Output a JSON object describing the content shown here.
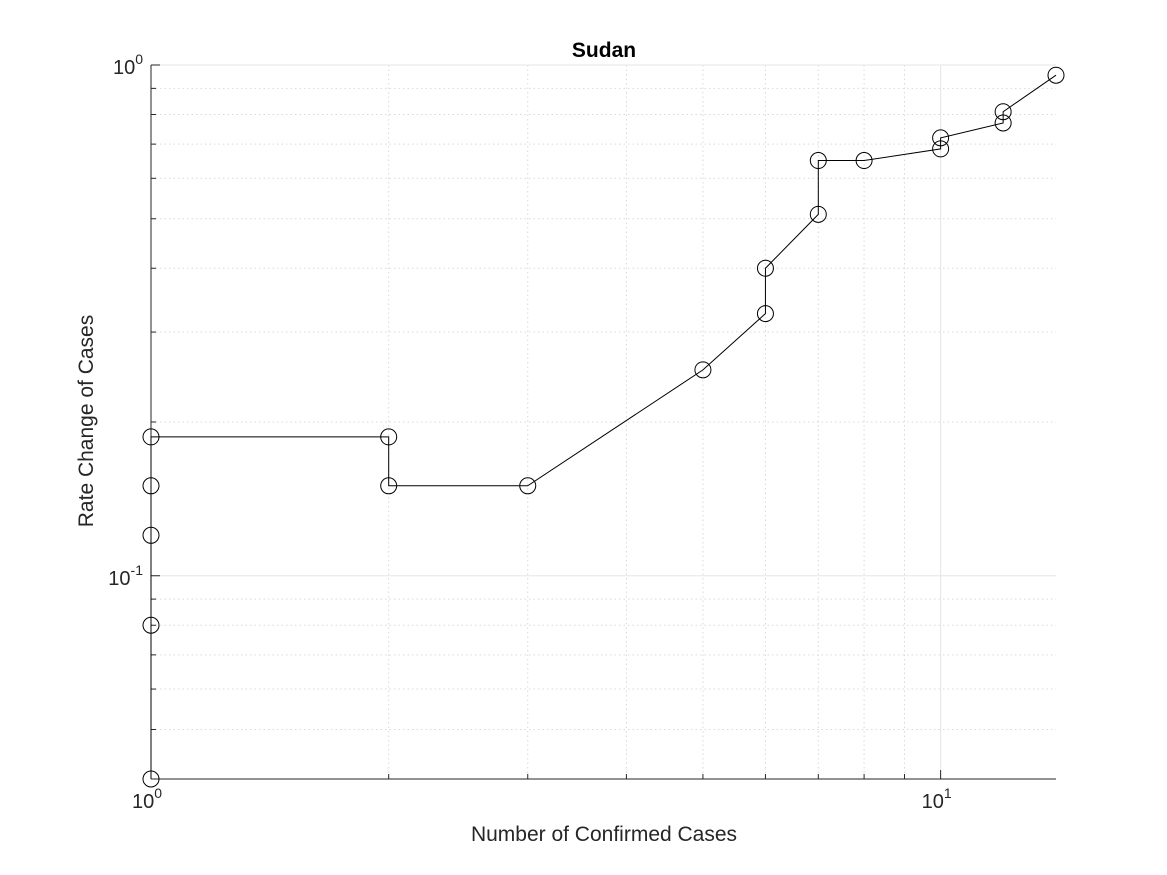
{
  "chart_data": {
    "type": "line",
    "title": "Sudan",
    "xlabel": "Number of Confirmed Cases",
    "ylabel": "Rate Change of Cases",
    "xscale": "log",
    "yscale": "log",
    "xlim": [
      1,
      14
    ],
    "ylim": [
      0.04,
      1
    ],
    "grid": true,
    "minor_grid": true,
    "legend": "none",
    "marker": "circle",
    "colors": {
      "line": "#000000",
      "grid_major": "#e6e6e6",
      "grid_minor": "#d9d9d9",
      "axis": "#262626",
      "background": "#ffffff"
    },
    "x_ticks": [
      {
        "base": "10",
        "exp": "0",
        "value": 1
      },
      {
        "base": "10",
        "exp": "1",
        "value": 10
      }
    ],
    "y_ticks": [
      {
        "base": "10",
        "exp": "-1",
        "value": 0.1
      },
      {
        "base": "10",
        "exp": "0",
        "value": 1
      }
    ],
    "series": [
      {
        "x": [
          1,
          1,
          1,
          1,
          1,
          2,
          2,
          3,
          5,
          6,
          6,
          7,
          7,
          8,
          10,
          10,
          12,
          12,
          14
        ],
        "y": [
          0.04,
          0.08,
          0.12,
          0.15,
          0.187,
          0.187,
          0.15,
          0.15,
          0.253,
          0.326,
          0.4,
          0.51,
          0.65,
          0.65,
          0.685,
          0.72,
          0.77,
          0.81,
          0.955
        ]
      }
    ]
  }
}
